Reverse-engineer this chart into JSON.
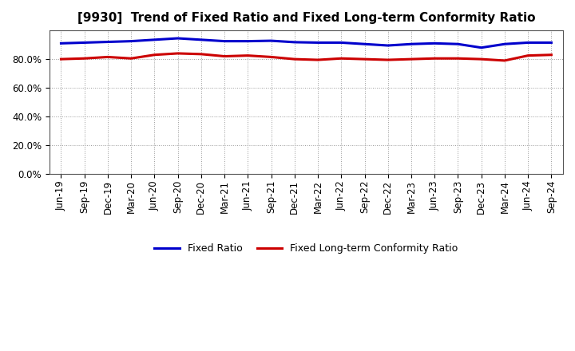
{
  "title": "[9930]  Trend of Fixed Ratio and Fixed Long-term Conformity Ratio",
  "x_labels": [
    "Jun-19",
    "Sep-19",
    "Dec-19",
    "Mar-20",
    "Jun-20",
    "Sep-20",
    "Dec-20",
    "Mar-21",
    "Jun-21",
    "Sep-21",
    "Dec-21",
    "Mar-22",
    "Jun-22",
    "Sep-22",
    "Dec-22",
    "Mar-23",
    "Jun-23",
    "Sep-23",
    "Dec-23",
    "Mar-24",
    "Jun-24",
    "Sep-24"
  ],
  "fixed_ratio": [
    91.0,
    91.5,
    92.0,
    92.5,
    93.5,
    94.5,
    93.5,
    92.5,
    92.5,
    92.8,
    91.8,
    91.5,
    91.5,
    90.5,
    89.5,
    90.5,
    91.0,
    90.5,
    88.0,
    90.5,
    91.5,
    91.5
  ],
  "fixed_long_term": [
    80.0,
    80.5,
    81.5,
    80.5,
    83.0,
    84.0,
    83.5,
    82.0,
    82.5,
    81.5,
    80.0,
    79.5,
    80.5,
    80.0,
    79.5,
    80.0,
    80.5,
    80.5,
    80.0,
    79.0,
    82.5,
    83.0
  ],
  "fixed_ratio_color": "#0000CC",
  "fixed_long_term_color": "#CC0000",
  "background_color": "#ffffff",
  "ylim": [
    0,
    100
  ],
  "yticks": [
    0,
    20,
    40,
    60,
    80
  ],
  "legend_fixed_ratio": "Fixed Ratio",
  "legend_fixed_long_term": "Fixed Long-term Conformity Ratio",
  "line_width": 2.2,
  "grid_color": "#999999",
  "title_fontsize": 11,
  "tick_fontsize": 8.5
}
